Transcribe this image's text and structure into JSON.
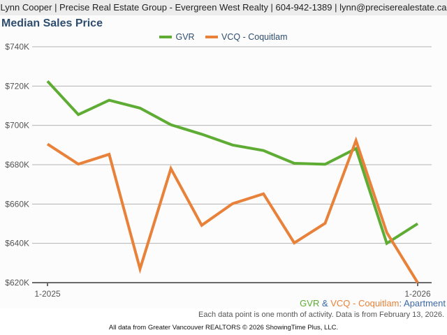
{
  "header": {
    "contact_line": "Lynn Cooper | Precise Real Estate Group - Evergreen West Realty | 604-942-1389 | lynn@preciserealestate.ca"
  },
  "footer": {
    "subtitle": {
      "series1": "GVR",
      "amp": " & ",
      "series2": "VCQ - Coquitlam",
      "colon": ":",
      "category": " Apartment"
    },
    "note": "Each data point is one month of activity. Data is from February 13, 2026.",
    "credits": "All data from Greater Vancouver REALTORS © 2026 ShowingTime Plus, LLC."
  },
  "colors": {
    "gvr": "#5eac34",
    "vcq": "#e8823a",
    "title": "#2e4d6e",
    "category": "#3c6aa5"
  },
  "chart_data": {
    "type": "line",
    "title": "Median Sales Price",
    "xlabel": "",
    "ylabel": "",
    "x": [
      "1-2025",
      "2-2025",
      "3-2025",
      "4-2025",
      "5-2025",
      "6-2025",
      "7-2025",
      "8-2025",
      "9-2025",
      "10-2025",
      "11-2025",
      "12-2025",
      "1-2026"
    ],
    "x_tick_labels": [
      "1-2025",
      "1-2026"
    ],
    "y_ticks": [
      620000,
      640000,
      660000,
      680000,
      700000,
      720000,
      740000
    ],
    "y_tick_labels": [
      "$620K",
      "$640K",
      "$660K",
      "$680K",
      "$700K",
      "$720K",
      "$740K"
    ],
    "ylim": [
      620000,
      740000
    ],
    "grid": true,
    "legend_position": "top-center",
    "series": [
      {
        "name": "GVR",
        "color": "#5eac34",
        "values": [
          722500,
          705500,
          712800,
          708800,
          700300,
          695500,
          690000,
          687200,
          680700,
          680200,
          688200,
          640000,
          650000
        ]
      },
      {
        "name": "VCQ - Coquitlam",
        "color": "#e8823a",
        "values": [
          690500,
          680300,
          685300,
          627000,
          678000,
          649200,
          660200,
          665200,
          640200,
          650200,
          692300,
          645500,
          620000
        ]
      }
    ]
  }
}
